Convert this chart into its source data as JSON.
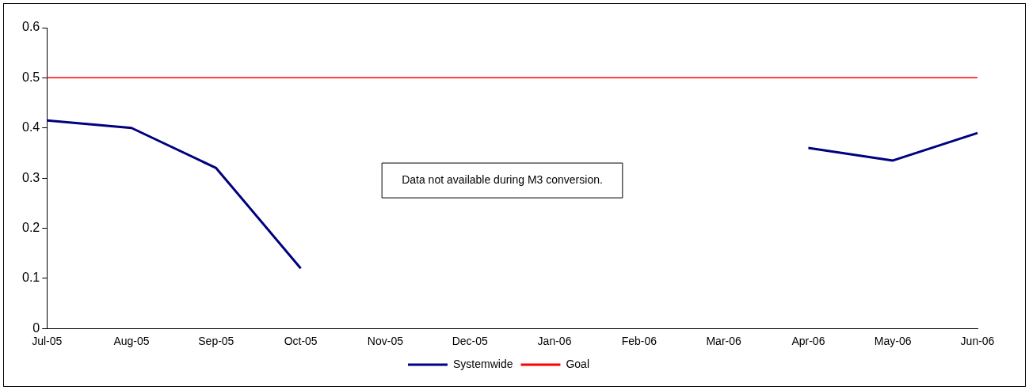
{
  "chart_data": {
    "type": "line",
    "categories": [
      "Jul-05",
      "Aug-05",
      "Sep-05",
      "Oct-05",
      "Nov-05",
      "Dec-05",
      "Jan-06",
      "Feb-06",
      "Mar-06",
      "Apr-06",
      "May-06",
      "Jun-06"
    ],
    "series": [
      {
        "name": "Systemwide",
        "color": "#000080",
        "values": [
          0.415,
          0.4,
          0.32,
          0.12,
          null,
          null,
          null,
          null,
          null,
          0.36,
          0.335,
          0.39
        ]
      },
      {
        "name": "Goal",
        "color": "#ff0000",
        "values": [
          0.5,
          0.5,
          0.5,
          0.5,
          0.5,
          0.5,
          0.5,
          0.5,
          0.5,
          0.5,
          0.5,
          0.5
        ]
      }
    ],
    "ylim": [
      0,
      0.6
    ],
    "yticks": [
      0,
      0.1,
      0.2,
      0.3,
      0.4,
      0.5,
      0.6
    ],
    "grid": false,
    "legend": "bottom",
    "marker": "none",
    "line_style": "solid",
    "annotations": [
      "Data not available during M3 conversion."
    ]
  }
}
